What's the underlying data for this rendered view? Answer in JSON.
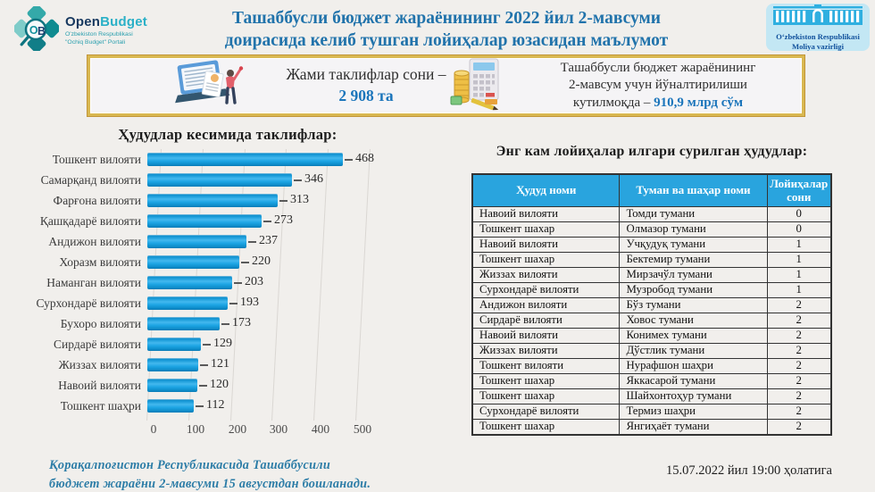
{
  "header": {
    "logo": {
      "brand_part1": "Open",
      "brand_part2": "Budget",
      "subtitle_line1": "O'zbekiston Respublikasi",
      "subtitle_line2": "\"Ochiq Budget\" Portali"
    },
    "title_line1": "Ташаббусли бюджет жараёнининг 2022 йил 2-мавсуми",
    "title_line2": "доирасида келиб тушган лойиҳалар юзасидан маълумот",
    "ministry_line1": "O‘zbekiston Respublikasi",
    "ministry_line2": "Moliya vazirligi"
  },
  "banner": {
    "left_label": "Жами таклифлар сони –",
    "left_value": "2 908 та",
    "right_line1": "Ташаббусли бюджет жараёнининг",
    "right_line2": "2-мавсум учун йўналтирилиши",
    "right_line3_prefix": "кутилмоқда – ",
    "right_value": "910,9 млрд сўм"
  },
  "chart_data": {
    "type": "bar",
    "orientation": "horizontal",
    "title": "Ҳудудлар кесимида таклифлар:",
    "categories": [
      "Тошкент вилояти",
      "Самарқанд вилояти",
      "Фарғона вилояти",
      "Қашқадарё вилояти",
      "Андижон вилояти",
      "Хоразм вилояти",
      "Наманган вилояти",
      "Сурхондарё вилояти",
      "Бухоро вилояти",
      "Сирдарё вилояти",
      "Жиззах вилояти",
      "Навоий вилояти",
      "Тошкент шаҳри"
    ],
    "values": [
      468,
      346,
      313,
      273,
      237,
      220,
      203,
      193,
      173,
      129,
      121,
      120,
      112
    ],
    "xlabel": "",
    "ylabel": "",
    "xlim": [
      0,
      500
    ],
    "xticks": [
      0,
      100,
      200,
      300,
      400,
      500
    ],
    "grid": true,
    "bar_color": "#1aa0e0"
  },
  "table": {
    "title": "Энг кам лойиҳалар илгари сурилган ҳудудлар:",
    "headers": [
      "Ҳудуд номи",
      "Туман ва шаҳар номи",
      "Лойиҳалар сони"
    ],
    "rows": [
      [
        "Навоий вилояти",
        "Томди тумани",
        "0"
      ],
      [
        "Тошкент шахар",
        "Олмазор тумани",
        "0"
      ],
      [
        "Навоий вилояти",
        "Учқудуқ тумани",
        "1"
      ],
      [
        "Тошкент шахар",
        "Бектемир тумани",
        "1"
      ],
      [
        "Жиззах вилояти",
        "Мирзачўл тумани",
        "1"
      ],
      [
        "Сурхондарё вилояти",
        "Музробод тумани",
        "1"
      ],
      [
        "Андижон вилояти",
        "Бўз тумани",
        "2"
      ],
      [
        "Сирдарё вилояти",
        "Ховос тумани",
        "2"
      ],
      [
        "Навоий вилояти",
        "Конимех тумани",
        "2"
      ],
      [
        "Жиззах вилояти",
        "Дўстлик тумани",
        "2"
      ],
      [
        "Тошкент вилояти",
        "Нурафшон шаҳри",
        "2"
      ],
      [
        "Тошкент шахар",
        "Яккасарой тумани",
        "2"
      ],
      [
        "Тошкент шахар",
        "Шайхонтоҳур тумани",
        "2"
      ],
      [
        "Сурхондарё вилояти",
        "Термиз шаҳри",
        "2"
      ],
      [
        "Тошкент шахар",
        "Янгиҳаёт тумани",
        "2"
      ]
    ]
  },
  "footer": {
    "note_line1": "Қорақалпоғистон  Республикасида  Ташаббусили",
    "note_line2": "бюджет жараёни 2-мавсуми 15 августдан бошланади.",
    "timestamp": "15.07.2022 йил 19:00 ҳолатига"
  },
  "colors": {
    "title_blue": "#2173ab",
    "bar_blue": "#1aa0e0",
    "table_header_blue": "#29a4de",
    "gold_border": "#d9b851",
    "value_blue": "#1b75bb",
    "note_teal": "#2d7da7",
    "background": "#f1efec"
  }
}
